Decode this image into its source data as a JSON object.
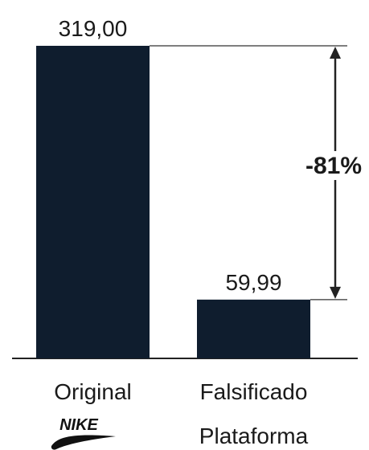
{
  "chart_data": {
    "type": "bar",
    "categories": [
      "Original",
      "Falsificado"
    ],
    "values": [
      319.0,
      59.99
    ],
    "value_labels": [
      "319,00",
      "59,99"
    ],
    "sub_labels": [
      "NIKE",
      "Plataforma"
    ],
    "difference_label": "-81%",
    "title": "",
    "xlabel": "",
    "ylabel": "",
    "ylim": [
      0,
      319
    ],
    "grid": false,
    "legend": "none"
  },
  "colors": {
    "bar": "#0f1d2e",
    "text": "#1a1a1a",
    "axis": "#222222"
  },
  "icons": {
    "brand_logo": "nike-swoosh-logo"
  }
}
